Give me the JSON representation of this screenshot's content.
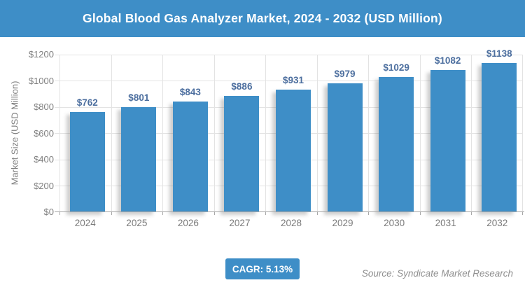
{
  "header": {
    "title": "Global Blood Gas Analyzer Market, 2024 - 2032 (USD Million)"
  },
  "chart_data": {
    "type": "bar",
    "title": "Global Blood Gas Analyzer Market, 2024 - 2032 (USD Million)",
    "categories": [
      "2024",
      "2025",
      "2026",
      "2027",
      "2028",
      "2029",
      "2030",
      "2031",
      "2032"
    ],
    "values": [
      762,
      801,
      843,
      886,
      931,
      979,
      1029,
      1082,
      1138
    ],
    "value_labels": [
      "$762",
      "$801",
      "$843",
      "$886",
      "$931",
      "$979",
      "$1029",
      "$1082",
      "$1138"
    ],
    "xlabel": "",
    "ylabel": "Market Size (USD Million)",
    "ylim": [
      0,
      1200
    ],
    "ytick_step": 200,
    "ytick_labels": [
      "$0",
      "$200",
      "$400",
      "$600",
      "$800",
      "$1000",
      "$1200"
    ],
    "grid": true,
    "legend": "none",
    "bar_color": "#3e8ec7",
    "value_label_color": "#4d6f9f",
    "axis_text_color": "#7f7f7f"
  },
  "footer": {
    "cagr_label": "CAGR: 5.13%",
    "source": "Source: Syndicate Market Research"
  },
  "colors": {
    "accent_blue": "#3e8ec7",
    "gridline": "#e3e3e3",
    "axis_line": "#a8a8a8"
  }
}
